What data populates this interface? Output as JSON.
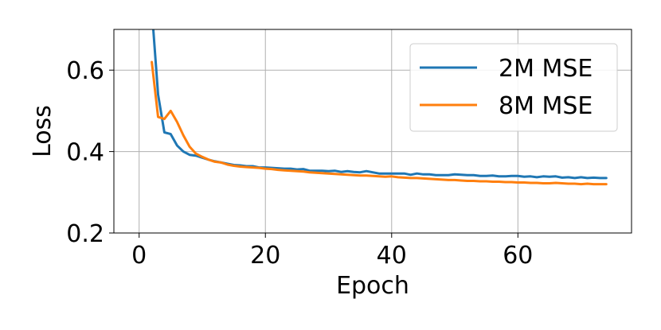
{
  "chart_data": {
    "type": "line",
    "title": "",
    "xlabel": "Epoch",
    "ylabel": "Loss",
    "xlim": [
      -4,
      78
    ],
    "ylim": [
      0.2,
      0.7
    ],
    "xticks": [
      0,
      20,
      40,
      60
    ],
    "xtick_labels": [
      "0",
      "20",
      "40",
      "60"
    ],
    "yticks": [
      0.2,
      0.4,
      0.6
    ],
    "ytick_labels": [
      "0.2",
      "0.4",
      "0.6"
    ],
    "grid": true,
    "legend_position": "top-right",
    "series": [
      {
        "name": "2M MSE",
        "color": "#1f77b4",
        "x": [
          2,
          3,
          4,
          5,
          6,
          7,
          8,
          9,
          10,
          11,
          12,
          13,
          14,
          15,
          16,
          17,
          18,
          19,
          20,
          21,
          22,
          23,
          24,
          25,
          26,
          27,
          28,
          29,
          30,
          31,
          32,
          33,
          34,
          35,
          36,
          37,
          38,
          39,
          40,
          41,
          42,
          43,
          44,
          45,
          46,
          47,
          48,
          49,
          50,
          51,
          52,
          53,
          54,
          55,
          56,
          57,
          58,
          59,
          60,
          61,
          62,
          63,
          64,
          65,
          66,
          67,
          68,
          69,
          70,
          71,
          72,
          73,
          74
        ],
        "values": [
          0.75,
          0.54,
          0.447,
          0.443,
          0.415,
          0.4,
          0.392,
          0.39,
          0.385,
          0.38,
          0.376,
          0.373,
          0.37,
          0.367,
          0.366,
          0.364,
          0.364,
          0.361,
          0.361,
          0.36,
          0.359,
          0.358,
          0.358,
          0.356,
          0.357,
          0.353,
          0.353,
          0.353,
          0.352,
          0.353,
          0.35,
          0.352,
          0.35,
          0.349,
          0.352,
          0.349,
          0.346,
          0.346,
          0.346,
          0.346,
          0.346,
          0.343,
          0.346,
          0.344,
          0.344,
          0.342,
          0.342,
          0.342,
          0.344,
          0.343,
          0.342,
          0.342,
          0.34,
          0.34,
          0.341,
          0.339,
          0.339,
          0.34,
          0.34,
          0.338,
          0.339,
          0.337,
          0.339,
          0.338,
          0.339,
          0.336,
          0.337,
          0.335,
          0.337,
          0.335,
          0.336,
          0.335,
          0.335
        ]
      },
      {
        "name": "8M MSE",
        "color": "#ff7f0e",
        "x": [
          2,
          3,
          4,
          5,
          6,
          7,
          8,
          9,
          10,
          11,
          12,
          13,
          14,
          15,
          16,
          17,
          18,
          19,
          20,
          21,
          22,
          23,
          24,
          25,
          26,
          27,
          28,
          29,
          30,
          31,
          32,
          33,
          34,
          35,
          36,
          37,
          38,
          39,
          40,
          41,
          42,
          43,
          44,
          45,
          46,
          47,
          48,
          49,
          50,
          51,
          52,
          53,
          54,
          55,
          56,
          57,
          58,
          59,
          60,
          61,
          62,
          63,
          64,
          65,
          66,
          67,
          68,
          69,
          70,
          71,
          72,
          73,
          74
        ],
        "values": [
          0.62,
          0.485,
          0.48,
          0.5,
          0.473,
          0.44,
          0.412,
          0.395,
          0.387,
          0.38,
          0.375,
          0.373,
          0.368,
          0.365,
          0.363,
          0.362,
          0.361,
          0.36,
          0.358,
          0.357,
          0.355,
          0.354,
          0.353,
          0.352,
          0.351,
          0.349,
          0.348,
          0.347,
          0.346,
          0.345,
          0.344,
          0.343,
          0.342,
          0.341,
          0.341,
          0.34,
          0.339,
          0.338,
          0.339,
          0.337,
          0.336,
          0.335,
          0.335,
          0.334,
          0.333,
          0.332,
          0.331,
          0.33,
          0.33,
          0.329,
          0.328,
          0.328,
          0.327,
          0.327,
          0.326,
          0.326,
          0.325,
          0.325,
          0.324,
          0.324,
          0.323,
          0.323,
          0.322,
          0.322,
          0.323,
          0.322,
          0.321,
          0.321,
          0.32,
          0.321,
          0.32,
          0.32,
          0.32
        ]
      }
    ]
  }
}
